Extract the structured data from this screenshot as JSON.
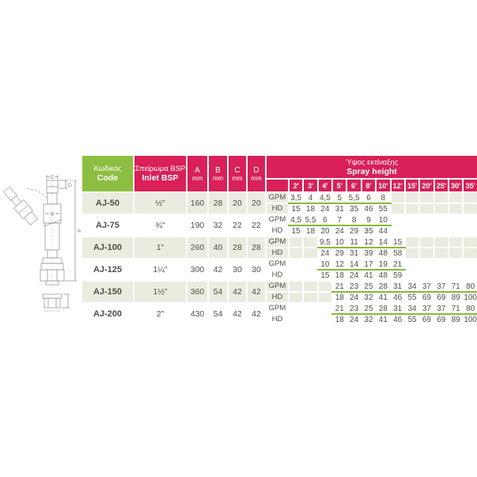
{
  "colors": {
    "header_pink": "#d92058",
    "header_green": "#8cbe41",
    "row_shade": "#ebebe0",
    "value_underline": "#86b93c",
    "body_text": "#50504a"
  },
  "diagram": {
    "name": "adjustable-jet-nozzle-drawing",
    "labels": {
      "a": "A",
      "b": "B",
      "c": "C",
      "d": "D"
    }
  },
  "table": {
    "header": {
      "code_el": "Κωδικός",
      "code_en": "Code",
      "inlet_el": "Σπείρωμα BSP",
      "inlet_en": "Inlet BSP",
      "dims": [
        {
          "letter": "A",
          "unit": "mm"
        },
        {
          "letter": "B",
          "unit": "mm"
        },
        {
          "letter": "C",
          "unit": "mm"
        },
        {
          "letter": "D",
          "unit": "mm"
        }
      ],
      "spray_el": "Ύψος εκτίναξης",
      "spray_en": "Spray height",
      "heights": [
        "2'",
        "3'",
        "4'",
        "5'",
        "6'",
        "8'",
        "10'",
        "12'",
        "15'",
        "20'",
        "25'",
        "30'",
        "35'"
      ]
    },
    "row_labels": {
      "gpm": "GPM",
      "hd": "HD"
    },
    "rows": [
      {
        "code": "AJ-50",
        "inlet": "½\"",
        "a": "160",
        "b": "28",
        "c": "20",
        "d": "20",
        "start": 0,
        "gpm": [
          "3,5",
          "4",
          "4,5",
          "5",
          "5,5",
          "6",
          "8"
        ],
        "hd": [
          "15",
          "18",
          "24",
          "31",
          "35",
          "46",
          "55"
        ]
      },
      {
        "code": "AJ-75",
        "inlet": "¾\"",
        "a": "190",
        "b": "32",
        "c": "22",
        "d": "22",
        "start": 0,
        "gpm": [
          "4,5",
          "5,5",
          "6",
          "7",
          "8",
          "9",
          "10"
        ],
        "hd": [
          "15",
          "18",
          "20",
          "24",
          "29",
          "35",
          "44"
        ]
      },
      {
        "code": "AJ-100",
        "inlet": "1\"",
        "a": "260",
        "b": "40",
        "c": "28",
        "d": "28",
        "start": 2,
        "gpm": [
          "9,5",
          "10",
          "11",
          "12",
          "14",
          "15"
        ],
        "hd": [
          "24",
          "29",
          "31",
          "39",
          "48",
          "58"
        ]
      },
      {
        "code": "AJ-125",
        "inlet": "1¼\"",
        "a": "300",
        "b": "42",
        "c": "30",
        "d": "30",
        "start": 2,
        "gpm": [
          "10",
          "12",
          "14",
          "17",
          "19",
          "21"
        ],
        "hd": [
          "15",
          "18",
          "24",
          "41",
          "48",
          "59"
        ]
      },
      {
        "code": "AJ-150",
        "inlet": "1½\"",
        "a": "360",
        "b": "54",
        "c": "42",
        "d": "42",
        "start": 3,
        "gpm": [
          "21",
          "23",
          "25",
          "28",
          "31",
          "34",
          "37",
          "37",
          "71",
          "80"
        ],
        "hd": [
          "18",
          "24",
          "32",
          "41",
          "46",
          "55",
          "69",
          "69",
          "89",
          "100"
        ]
      },
      {
        "code": "AJ-200",
        "inlet": "2\"",
        "a": "430",
        "b": "54",
        "c": "42",
        "d": "42",
        "start": 3,
        "gpm": [
          "21",
          "23",
          "25",
          "28",
          "31",
          "34",
          "37",
          "37",
          "71",
          "80"
        ],
        "hd": [
          "18",
          "24",
          "32",
          "41",
          "46",
          "55",
          "69",
          "69",
          "89",
          "100"
        ]
      }
    ]
  }
}
